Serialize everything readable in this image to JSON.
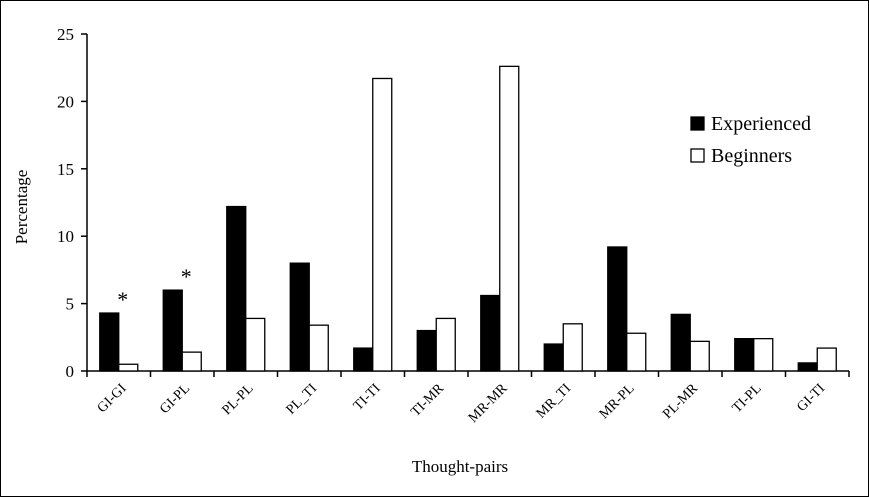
{
  "chart_data": {
    "type": "bar",
    "title": "",
    "xlabel": "Thought-pairs",
    "ylabel": "Percentage",
    "ylim": [
      0,
      25
    ],
    "yticks": [
      0,
      5,
      10,
      15,
      20,
      25
    ],
    "categories": [
      "GI-GI",
      "GI-PL",
      "PL-PL",
      "PL_TI",
      "TI-TI",
      "TI-MR",
      "MR-MR",
      "MR_TI",
      "MR-PL",
      "PL-MR",
      "TI-PL",
      "GI-TI"
    ],
    "series": [
      {
        "name": "Experienced",
        "color": "#000000",
        "values": [
          4.3,
          6.0,
          12.2,
          8.0,
          1.7,
          3.0,
          5.6,
          2.0,
          9.2,
          4.2,
          2.4,
          0.6
        ]
      },
      {
        "name": "Beginners",
        "color": "#ffffff",
        "values": [
          0.5,
          1.4,
          3.9,
          3.4,
          21.7,
          3.9,
          22.6,
          3.5,
          2.8,
          2.2,
          2.4,
          1.7
        ]
      }
    ],
    "annotations": [
      {
        "category": "GI-GI",
        "text": "*"
      },
      {
        "category": "GI-PL",
        "text": "*"
      }
    ],
    "legend_position": "right",
    "grid": false
  }
}
